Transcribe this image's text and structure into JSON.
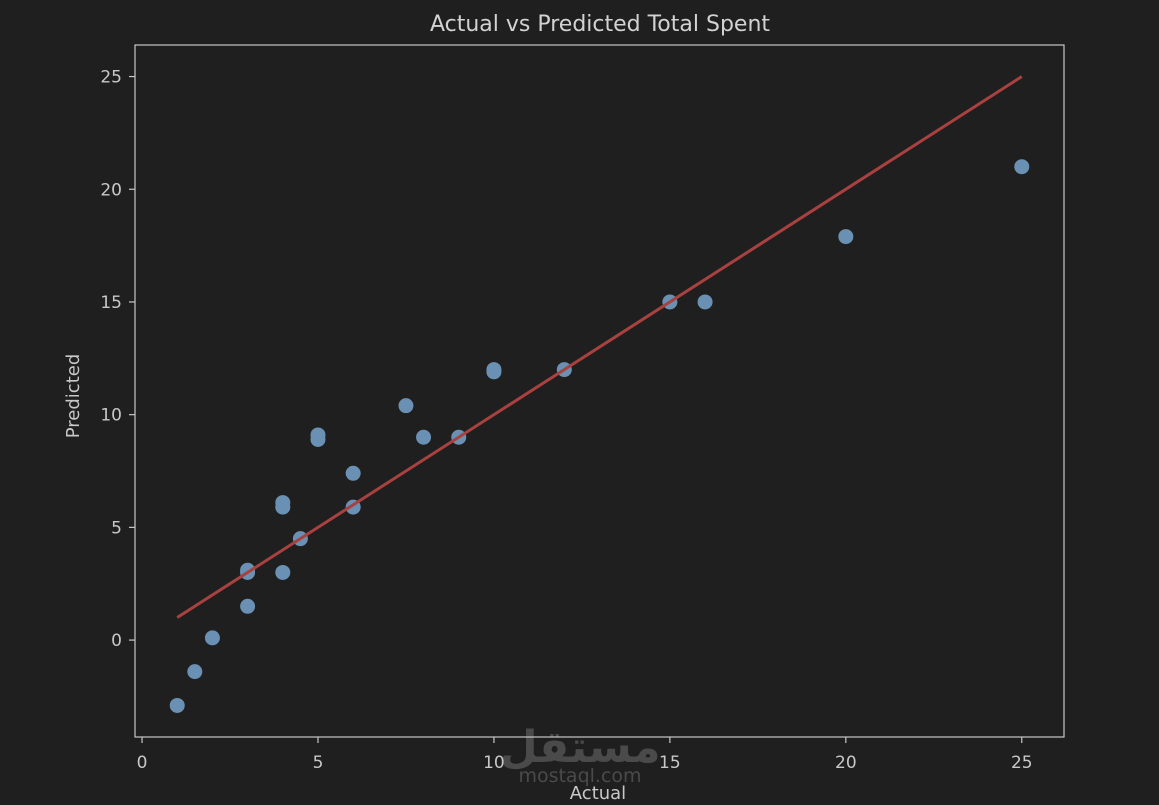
{
  "chart_data": {
    "type": "scatter",
    "title": "Actual vs Predicted Total Spent",
    "xlabel": "Actual",
    "ylabel": "Predicted",
    "xlim": [
      -0.2,
      26.2
    ],
    "ylim": [
      -4.3,
      26.4
    ],
    "xticks": [
      0,
      5,
      10,
      15,
      20,
      25
    ],
    "yticks": [
      0,
      5,
      10,
      15,
      20,
      25
    ],
    "grid": false,
    "point_color": "#6a91b3",
    "line_color": "#a8413f",
    "background": "#1f1f1f",
    "points": [
      {
        "x": 1,
        "y": -2.9
      },
      {
        "x": 1.5,
        "y": -1.4
      },
      {
        "x": 2,
        "y": 0.1
      },
      {
        "x": 3,
        "y": 1.5
      },
      {
        "x": 3,
        "y": 3.0
      },
      {
        "x": 3,
        "y": 3.1
      },
      {
        "x": 4,
        "y": 3.0
      },
      {
        "x": 4,
        "y": 5.9
      },
      {
        "x": 4,
        "y": 6.1
      },
      {
        "x": 4.5,
        "y": 4.5
      },
      {
        "x": 5,
        "y": 8.9
      },
      {
        "x": 5,
        "y": 9.1
      },
      {
        "x": 6,
        "y": 5.9
      },
      {
        "x": 6,
        "y": 7.4
      },
      {
        "x": 7.5,
        "y": 10.4
      },
      {
        "x": 8,
        "y": 9.0
      },
      {
        "x": 9,
        "y": 9.0
      },
      {
        "x": 10,
        "y": 11.9
      },
      {
        "x": 10,
        "y": 12.0
      },
      {
        "x": 12,
        "y": 12.0
      },
      {
        "x": 15,
        "y": 15.0
      },
      {
        "x": 16,
        "y": 15.0
      },
      {
        "x": 20,
        "y": 17.9
      },
      {
        "x": 25,
        "y": 21.0
      }
    ],
    "reference_line": {
      "x": [
        1,
        25
      ],
      "y": [
        1,
        25
      ]
    }
  },
  "watermark": {
    "arabic": "مستقل",
    "latin": "mostaql.com"
  }
}
